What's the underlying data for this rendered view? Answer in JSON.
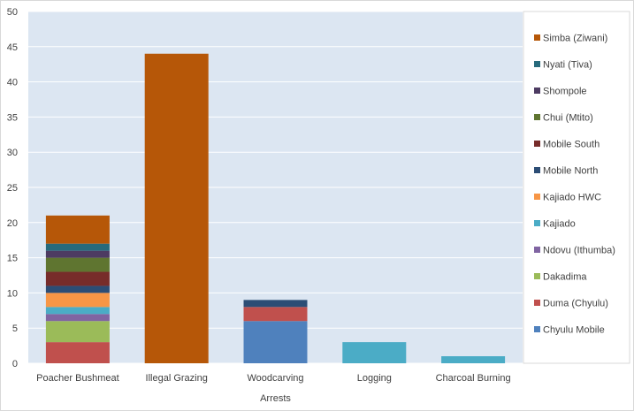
{
  "chart_data": {
    "type": "bar",
    "stacked": true,
    "categories": [
      "Poacher Bushmeat",
      "Illegal Grazing",
      "Woodcarving",
      "Logging",
      "Charcoal Burning"
    ],
    "xlabel": "Arrests",
    "ylabel": "",
    "ylim": [
      0,
      50
    ],
    "yticks": [
      0,
      5,
      10,
      15,
      20,
      25,
      30,
      35,
      40,
      45,
      50
    ],
    "grid": true,
    "legend_position": "right",
    "series": [
      {
        "name": "Chyulu Mobile",
        "color": "#4f81bd",
        "values": [
          0,
          0,
          6,
          0,
          0
        ]
      },
      {
        "name": "Duma (Chyulu)",
        "color": "#c0504d",
        "values": [
          3,
          0,
          2,
          0,
          0
        ]
      },
      {
        "name": "Dakadima",
        "color": "#9bbb59",
        "values": [
          3,
          0,
          0,
          0,
          0
        ]
      },
      {
        "name": "Ndovu (Ithumba)",
        "color": "#8064a2",
        "values": [
          1,
          0,
          0,
          0,
          0
        ]
      },
      {
        "name": "Kajiado",
        "color": "#4bacc6",
        "values": [
          1,
          0,
          0,
          3,
          1
        ]
      },
      {
        "name": "Kajiado HWC",
        "color": "#f79646",
        "values": [
          2,
          0,
          0,
          0,
          0
        ]
      },
      {
        "name": "Mobile North",
        "color": "#2c4d75",
        "values": [
          1,
          0,
          1,
          0,
          0
        ]
      },
      {
        "name": "Mobile South",
        "color": "#772c2a",
        "values": [
          2,
          0,
          0,
          0,
          0
        ]
      },
      {
        "name": "Chui (Mtito)",
        "color": "#5f7530",
        "values": [
          2,
          0,
          0,
          0,
          0
        ]
      },
      {
        "name": "Shompole",
        "color": "#4d3b62",
        "values": [
          1,
          0,
          0,
          0,
          0
        ]
      },
      {
        "name": "Nyati (Tiva)",
        "color": "#276a7c",
        "values": [
          1,
          0,
          0,
          0,
          0
        ]
      },
      {
        "name": "Simba (Ziwani)",
        "color": "#b65708",
        "values": [
          4,
          44,
          0,
          0,
          0
        ]
      }
    ]
  }
}
